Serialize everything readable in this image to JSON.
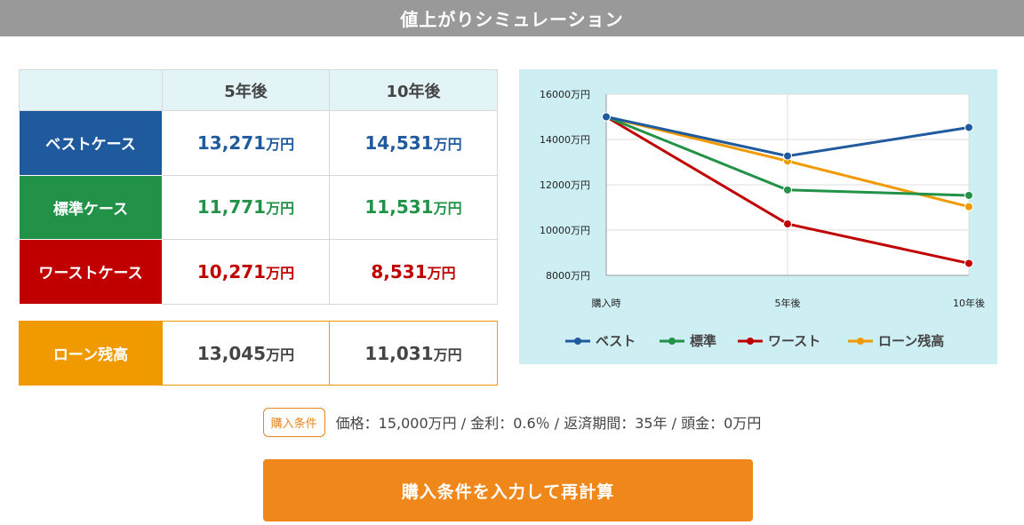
{
  "title": "値上がりシミュレーション",
  "table": {
    "headers": [
      "",
      "5年後",
      "10年後"
    ],
    "rows": [
      {
        "label": "ベストケース",
        "v5": "13,271",
        "v10": "14,531",
        "unit": "万円"
      },
      {
        "label": "標準ケース",
        "v5": "11,771",
        "v10": "11,531",
        "unit": "万円"
      },
      {
        "label": "ワーストケース",
        "v5": "10,271",
        "v10": "8,531",
        "unit": "万円"
      }
    ],
    "loan": {
      "label": "ローン残高",
      "v5": "13,045",
      "v10": "11,031",
      "unit": "万円"
    }
  },
  "colors": {
    "best": "#1f5a9f",
    "standard": "#219248",
    "worst": "#c00000",
    "loan": "#f09a00",
    "button": "#f0871a"
  },
  "conditions": {
    "badge": "購入条件",
    "text": "価格：15,000万円 / 金利：0.6％ / 返済期間：35年 / 頭金：0万円"
  },
  "button": {
    "label": "購入条件を入力して再計算"
  },
  "chart_data": {
    "type": "line",
    "categories": [
      "購入時",
      "5年後",
      "10年後"
    ],
    "y_ticks": [
      "16000万円",
      "14000万円",
      "12000万円",
      "10000万円",
      "8000万円"
    ],
    "ylim": [
      8000,
      16000
    ],
    "grid": true,
    "legend_position": "bottom",
    "series": [
      {
        "name": "ベスト",
        "values": [
          15000,
          13271,
          14531
        ],
        "color": "#1f5a9f"
      },
      {
        "name": "標準",
        "values": [
          15000,
          11771,
          11531
        ],
        "color": "#219248"
      },
      {
        "name": "ワースト",
        "values": [
          15000,
          10271,
          8531
        ],
        "color": "#c00000"
      },
      {
        "name": "ローン残高",
        "values": [
          15000,
          13045,
          11031
        ],
        "color": "#f09a00"
      }
    ]
  }
}
